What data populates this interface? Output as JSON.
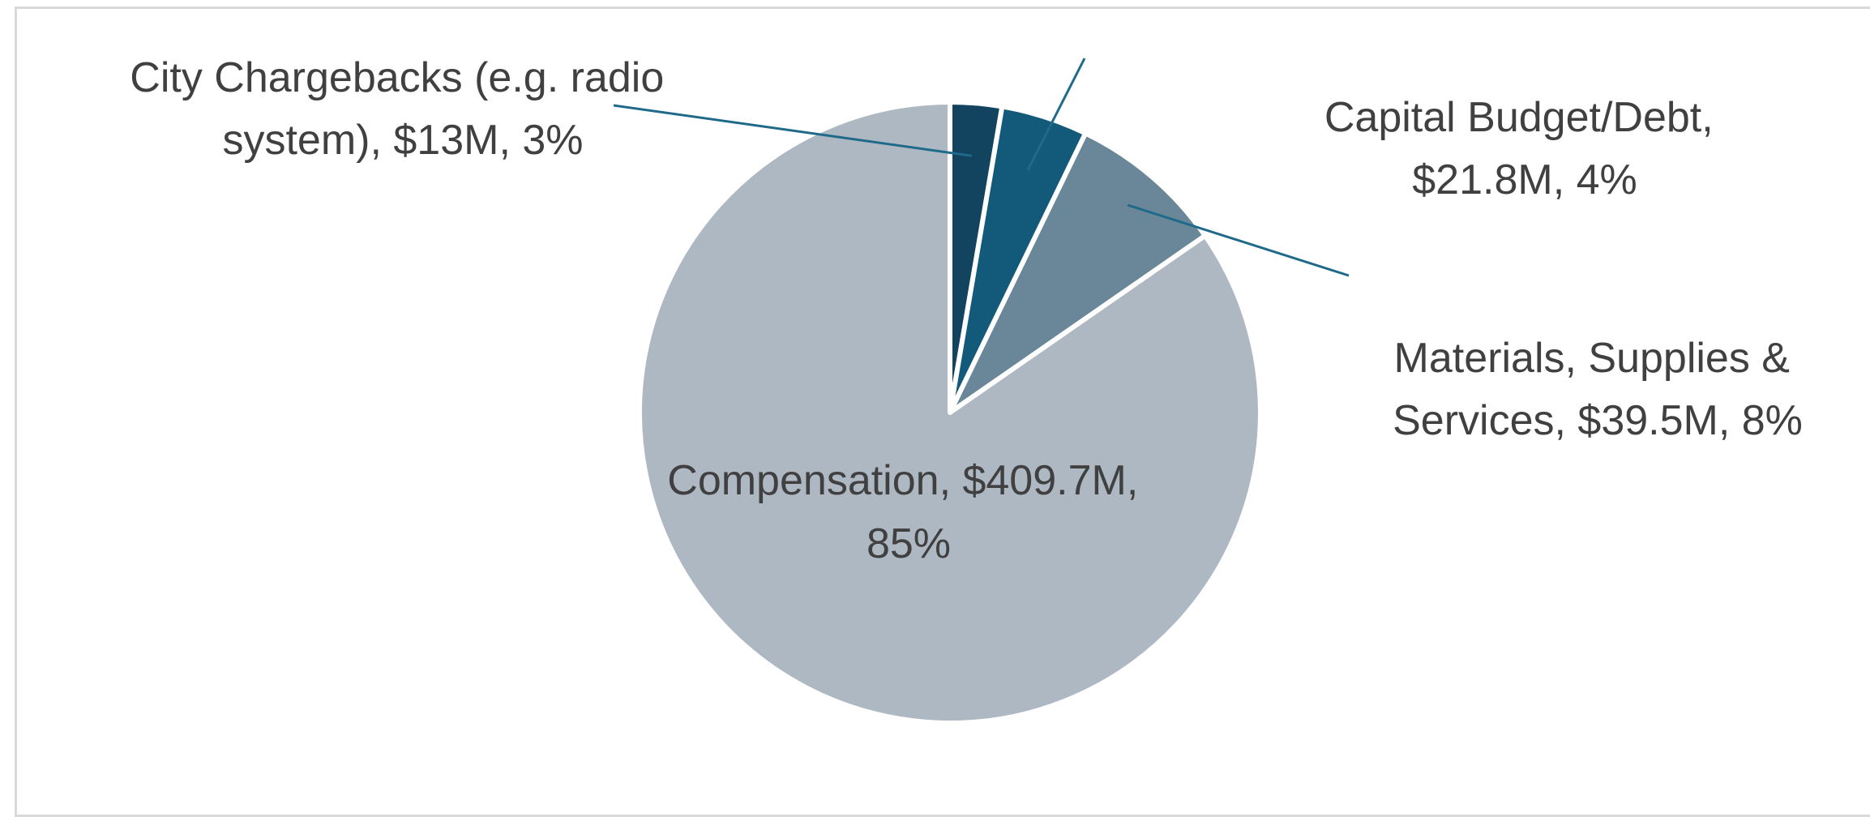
{
  "chart_data": {
    "type": "pie",
    "title": "",
    "start_angle_deg": 0,
    "direction": "clockwise",
    "slices": [
      {
        "name": "City Chargebacks (e.g. radio system)",
        "value": 13,
        "percent_label": "3%",
        "color": "#12435f",
        "label_lines": [
          "City Chargebacks (e.g. radio",
          "system), $13M, 3%"
        ]
      },
      {
        "name": "Capital Budget/Debt",
        "value": 21.8,
        "percent_label": "4%",
        "color": "#135a7a",
        "label_lines": [
          "Capital Budget/Debt,",
          "$21.8M, 4%"
        ]
      },
      {
        "name": "Materials, Supplies & Services",
        "value": 39.5,
        "percent_label": "8%",
        "color": "#6a8799",
        "label_lines": [
          "Materials, Supplies &",
          "Services, $39.5M, 8%"
        ]
      },
      {
        "name": "Compensation",
        "value": 409.7,
        "percent_label": "85%",
        "color": "#aeb8c3",
        "label_lines": [
          "Compensation, $409.7M,",
          "85%"
        ]
      }
    ],
    "leader_line_color": "#1f6a8a",
    "label_color": "#404040"
  }
}
